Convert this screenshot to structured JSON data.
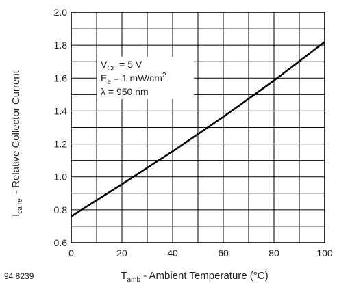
{
  "chart_data": {
    "type": "line",
    "figure_id": "94 8239",
    "xlabel": {
      "main": "T",
      "sub": "amb",
      "rest": " - Ambient Temperature (°C)"
    },
    "ylabel": {
      "main": "I",
      "sub": "ca rel",
      "rest": " - Relative Collector Current"
    },
    "xlim": [
      0,
      100
    ],
    "ylim": [
      0.6,
      2.0
    ],
    "x_ticks": [
      0,
      20,
      40,
      60,
      80,
      100
    ],
    "x_tick_labels": [
      "0",
      "20",
      "40",
      "60",
      "80",
      "100"
    ],
    "y_ticks": [
      0.6,
      0.8,
      1.0,
      1.2,
      1.4,
      1.6,
      1.8,
      2.0
    ],
    "y_tick_labels": [
      "0.6",
      "0.8",
      "1.0",
      "1.2",
      "1.4",
      "1.6",
      "1.8",
      "2.0"
    ],
    "x_minor_step": 10,
    "y_minor_step": 0.1,
    "grid": true,
    "annotations": {
      "vce": {
        "main": "V",
        "sub": "CE",
        "rest": " = 5 V"
      },
      "ee": {
        "main": "E",
        "sub": "e",
        "rest": " = 1 mW/cm",
        "sup": "2"
      },
      "lambda": {
        "main": "λ",
        "rest": "  = 950 nm"
      }
    },
    "series": [
      {
        "x": [
          0,
          20,
          40,
          60,
          80,
          100
        ],
        "y": [
          0.76,
          0.955,
          1.155,
          1.365,
          1.585,
          1.82
        ]
      }
    ],
    "colors": {
      "line": "#000000",
      "grid": "#000000",
      "background": "#ffffff"
    }
  }
}
